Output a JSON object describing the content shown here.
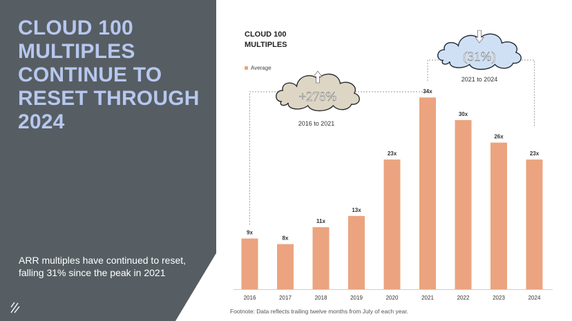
{
  "slide": {
    "headline": "CLOUD 100 MULTIPLES CONTINUE TO RESET THROUGH 2024",
    "subtext": "ARR multiples have continued to reset, falling 31% since the peak in 2021",
    "footnote": "Footnote: Data reflects trailing twelve months from July of each year."
  },
  "colors": {
    "panel": "#565e63",
    "headline": "#b7c7ef",
    "bar": "#eba47f",
    "cloud_up_fill": "#ddd6c4",
    "cloud_down_fill": "#cfe0f4"
  },
  "chart_data": {
    "type": "bar",
    "title": "CLOUD 100 MULTIPLES",
    "categories": [
      "2016",
      "2017",
      "2018",
      "2019",
      "2020",
      "2021",
      "2022",
      "2023",
      "2024"
    ],
    "series": [
      {
        "name": "Average",
        "values": [
          9,
          8,
          11,
          13,
          23,
          34,
          30,
          26,
          23
        ]
      }
    ],
    "data_labels": [
      "9x",
      "8x",
      "11x",
      "13x",
      "23x",
      "34x",
      "30x",
      "26x",
      "23x"
    ],
    "legend_position": "top-left",
    "grid": false,
    "annotations": [
      {
        "text": "+278%",
        "period": "2016 to 2021",
        "direction": "up",
        "icon": "up-arrow-icon"
      },
      {
        "text": "(31%)",
        "period": "2021 to 2024",
        "direction": "down",
        "icon": "down-arrow-icon"
      }
    ]
  }
}
